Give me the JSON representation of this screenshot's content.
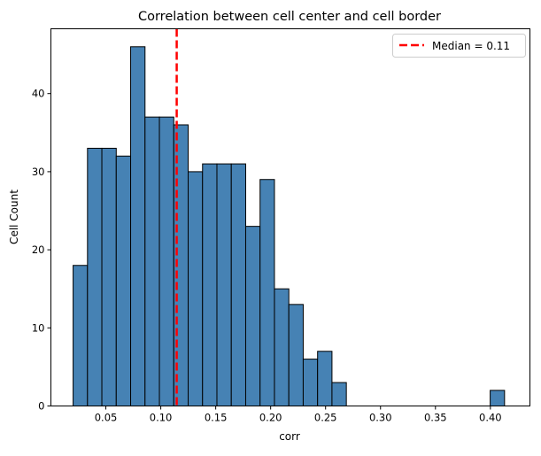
{
  "chart_data": {
    "type": "histogram",
    "title": "Correlation between cell center and cell border",
    "xlabel": "corr",
    "ylabel": "Cell Count",
    "xlim": [
      0.0,
      0.436
    ],
    "ylim": [
      0,
      48.3
    ],
    "bin_start": 0.0202,
    "bin_width": 0.01309,
    "counts": [
      18,
      33,
      33,
      32,
      46,
      37,
      37,
      36,
      30,
      31,
      31,
      31,
      23,
      29,
      15,
      13,
      6,
      7,
      3,
      0,
      0,
      0,
      0,
      0,
      0,
      0,
      0,
      0,
      0,
      2
    ],
    "xticks": [
      0.05,
      0.1,
      0.15,
      0.2,
      0.25,
      0.3,
      0.35,
      0.4
    ],
    "xtick_labels": [
      "0.05",
      "0.10",
      "0.15",
      "0.20",
      "0.25",
      "0.30",
      "0.35",
      "0.40"
    ],
    "yticks": [
      0,
      10,
      20,
      30,
      40
    ],
    "ytick_labels": [
      "0",
      "10",
      "20",
      "30",
      "40"
    ],
    "bar_color": "#4682b4",
    "median": {
      "value": 0.1145,
      "label": "Median = 0.11",
      "color": "#ff0000",
      "style": "dashed"
    },
    "legend": {
      "position": "top-right",
      "entries": [
        "Median = 0.11"
      ]
    },
    "grid": false
  }
}
